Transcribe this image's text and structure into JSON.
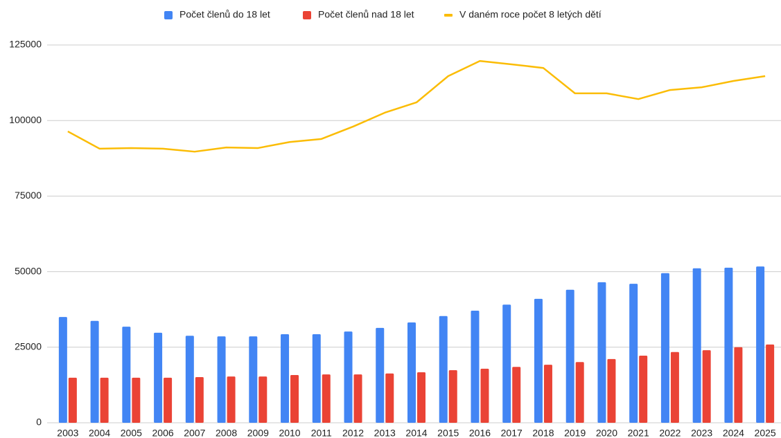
{
  "chart_data": {
    "type": "bar",
    "categories": [
      "2003",
      "2004",
      "2005",
      "2006",
      "2007",
      "2008",
      "2009",
      "2010",
      "2011",
      "2012",
      "2013",
      "2014",
      "2015",
      "2016",
      "2017",
      "2018",
      "2019",
      "2020",
      "2021",
      "2022",
      "2023",
      "2024",
      "2025"
    ],
    "series": [
      {
        "name": "Počet členů do 18 let",
        "color": "#4285f4",
        "type": "bar",
        "values": [
          35000,
          33700,
          31800,
          29800,
          28800,
          28600,
          28600,
          29300,
          29300,
          30200,
          31400,
          33200,
          35300,
          37100,
          39100,
          41000,
          44000,
          46500,
          46000,
          49500,
          51100,
          51300,
          51700
        ]
      },
      {
        "name": "Počet členů nad 18 let",
        "color": "#ea4335",
        "type": "bar",
        "values": [
          14900,
          14900,
          14900,
          14900,
          15100,
          15300,
          15300,
          15800,
          16000,
          16000,
          16300,
          16700,
          17400,
          17900,
          18500,
          19200,
          20100,
          21100,
          22200,
          23400,
          24000,
          25000,
          25900
        ]
      },
      {
        "name": "V daném roce počet 8 letých dětí",
        "color": "#fbbc04",
        "type": "line",
        "values": [
          96400,
          90700,
          90900,
          90700,
          89700,
          91100,
          90900,
          92900,
          93900,
          98000,
          102600,
          106000,
          114700,
          119700,
          118600,
          117400,
          109000,
          109000,
          107100,
          110100,
          111000,
          113100,
          114700
        ]
      }
    ],
    "ylim": [
      0,
      125000
    ],
    "yticks": [
      0,
      25000,
      50000,
      75000,
      100000,
      125000
    ],
    "grid": true,
    "legend": "top"
  }
}
